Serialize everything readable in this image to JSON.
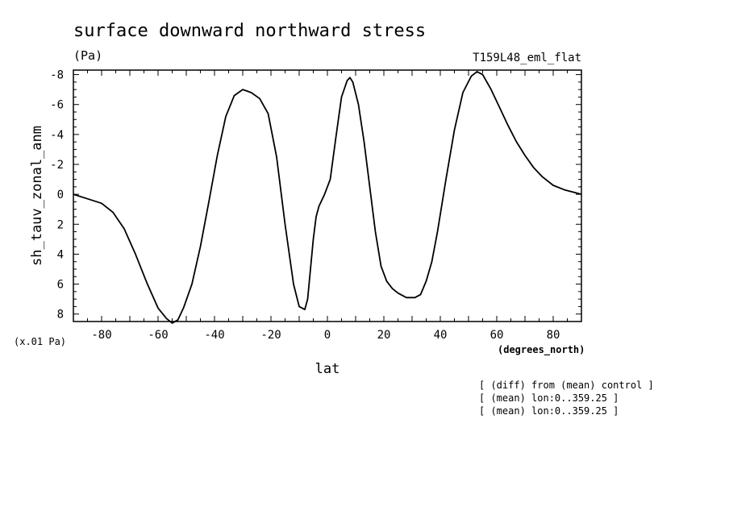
{
  "figure": {
    "title": "surface downward northward stress",
    "units": "(Pa)",
    "run_label": "T159L48_eml_flat",
    "scale_note": "(x.01 Pa)",
    "x_units": "(degrees_north)",
    "notes": [
      "[ (diff) from (mean) control ]",
      "[ (mean) lon:0..359.25 ]",
      "[ (mean) lon:0..359.25 ]"
    ]
  },
  "chart_data": {
    "type": "line",
    "title": "surface downward northward stress",
    "xlabel": "lat",
    "ylabel": "sh_tauv_zonal_anm",
    "xlim": [
      -90,
      90
    ],
    "ylim": [
      8.5,
      -8.3
    ],
    "y_inverted": true,
    "grid": false,
    "x_ticks": [
      -80,
      -60,
      -40,
      -20,
      0,
      20,
      40,
      60,
      80
    ],
    "x_tick_labels": [
      "-80",
      "-60",
      "-40",
      "-20",
      "0",
      "20",
      "40",
      "60",
      "80"
    ],
    "y_ticks": [
      -8,
      -6,
      -4,
      -2,
      0,
      2,
      4,
      6,
      8
    ],
    "y_tick_labels": [
      "-8",
      "-6",
      "-4",
      "-2",
      "0",
      "2",
      "4",
      "6",
      "8"
    ],
    "series": [
      {
        "color": "#000000",
        "x": [
          -90,
          -85,
          -80,
          -76,
          -72,
          -68,
          -64,
          -60,
          -57,
          -55,
          -53,
          -51,
          -48,
          -45,
          -42,
          -39,
          -36,
          -33,
          -30,
          -27,
          -24,
          -21,
          -18,
          -15,
          -12,
          -10,
          -8,
          -7,
          -6,
          -5,
          -4,
          -3,
          -1,
          1,
          3,
          5,
          7,
          8,
          9,
          11,
          13,
          15,
          17,
          19,
          21,
          23,
          25,
          28,
          31,
          33,
          35,
          37,
          39,
          42,
          45,
          48,
          51,
          53,
          55,
          58,
          61,
          64,
          67,
          70,
          73,
          76,
          80,
          84,
          88,
          90
        ],
        "y": [
          0.0,
          0.3,
          0.6,
          1.2,
          2.3,
          4.0,
          5.9,
          7.6,
          8.3,
          8.6,
          8.4,
          7.6,
          6.0,
          3.5,
          0.5,
          -2.6,
          -5.2,
          -6.6,
          -7.0,
          -6.8,
          -6.4,
          -5.4,
          -2.5,
          2.0,
          6.0,
          7.5,
          7.7,
          7.0,
          5.0,
          3.0,
          1.5,
          0.8,
          0.0,
          -1.0,
          -3.8,
          -6.5,
          -7.6,
          -7.8,
          -7.5,
          -6.0,
          -3.5,
          -0.5,
          2.5,
          4.8,
          5.8,
          6.3,
          6.6,
          6.9,
          6.9,
          6.7,
          5.8,
          4.5,
          2.5,
          -1.0,
          -4.3,
          -6.8,
          -7.9,
          -8.2,
          -8.0,
          -7.0,
          -5.8,
          -4.6,
          -3.5,
          -2.6,
          -1.8,
          -1.2,
          -0.6,
          -0.3,
          -0.1,
          0.0
        ]
      }
    ]
  }
}
